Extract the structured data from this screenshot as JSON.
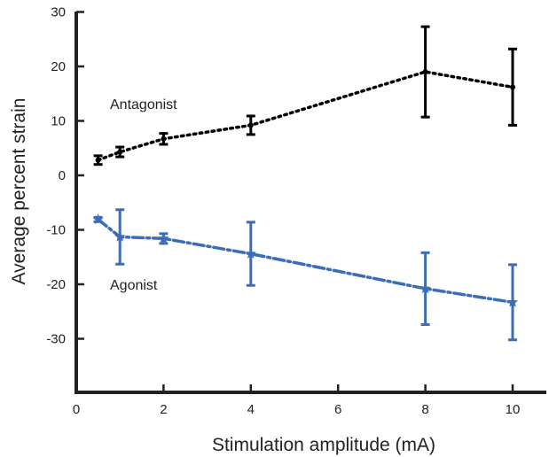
{
  "chart_data": {
    "type": "line",
    "xlabel": "Stimulation amplitude (mA)",
    "ylabel": "Average percent strain",
    "xlim": [
      0,
      10.7
    ],
    "ylim": [
      -40,
      30
    ],
    "xticks": [
      "0",
      "2",
      "4",
      "6",
      "8",
      "10"
    ],
    "yticks": [
      "30",
      "20",
      "10",
      "0",
      "-10",
      "-20",
      "-30"
    ],
    "grid": false,
    "legend": "none",
    "series": [
      {
        "name": "Antagonist",
        "color": "#000000",
        "line_style": "dotted",
        "marker": "dot",
        "x": [
          0.5,
          1,
          2,
          4,
          8,
          10
        ],
        "y": [
          2.8,
          4.3,
          6.7,
          9.2,
          19.0,
          16.2
        ],
        "err": [
          0.8,
          0.9,
          1.0,
          1.7,
          8.3,
          7.0
        ]
      },
      {
        "name": "Agonist",
        "color": "#3d6db5",
        "line_style": "dashdot",
        "marker": "star",
        "x": [
          0.5,
          1,
          2,
          4,
          8,
          10
        ],
        "y": [
          -8.1,
          -11.3,
          -11.6,
          -14.4,
          -20.8,
          -23.3
        ],
        "err": [
          0.4,
          5.0,
          0.9,
          5.8,
          6.6,
          6.9
        ]
      }
    ],
    "annotations": [
      {
        "text": "Antagonist",
        "series": 0
      },
      {
        "text": "Agonist",
        "series": 1
      }
    ]
  }
}
